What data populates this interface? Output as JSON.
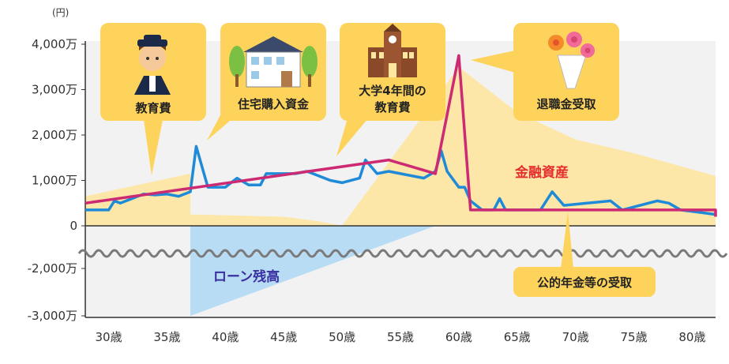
{
  "chart_data": {
    "type": "line",
    "unit": "(円)",
    "yticks": [
      {
        "value": 4000,
        "label": "4,000万"
      },
      {
        "value": 3000,
        "label": "3,000万"
      },
      {
        "value": 2000,
        "label": "2,000万"
      },
      {
        "value": 1000,
        "label": "1,000万"
      },
      {
        "value": 0,
        "label": "0"
      },
      {
        "value": -2000,
        "label": "-2,000万"
      },
      {
        "value": -3000,
        "label": "-3,000万"
      }
    ],
    "xticks": [
      {
        "value": 30,
        "label": "30歳"
      },
      {
        "value": 35,
        "label": "35歳"
      },
      {
        "value": 40,
        "label": "40歳"
      },
      {
        "value": 45,
        "label": "45歳"
      },
      {
        "value": 50,
        "label": "50歳"
      },
      {
        "value": 55,
        "label": "55歳"
      },
      {
        "value": 60,
        "label": "60歳"
      },
      {
        "value": 65,
        "label": "65歳"
      },
      {
        "value": 70,
        "label": "70歳"
      },
      {
        "value": 75,
        "label": "75歳"
      },
      {
        "value": 80,
        "label": "80歳"
      }
    ],
    "xlim": [
      28,
      82
    ],
    "series": [
      {
        "name": "金融資産",
        "color": "#cc2a73",
        "points": [
          [
            28,
            500
          ],
          [
            54,
            1450
          ],
          [
            58,
            1150
          ],
          [
            60,
            3750
          ],
          [
            61,
            350
          ],
          [
            82,
            350
          ],
          [
            82,
            200
          ]
        ]
      },
      {
        "name": "",
        "color": "#1f8bd8",
        "points": [
          [
            28,
            350
          ],
          [
            30,
            350
          ],
          [
            30.5,
            550
          ],
          [
            31,
            500
          ],
          [
            31.5,
            550
          ],
          [
            33,
            700
          ],
          [
            34,
            680
          ],
          [
            35,
            700
          ],
          [
            36,
            650
          ],
          [
            37,
            750
          ],
          [
            37.5,
            1750
          ],
          [
            38.5,
            850
          ],
          [
            39,
            850
          ],
          [
            40,
            850
          ],
          [
            41,
            1050
          ],
          [
            42,
            900
          ],
          [
            43,
            900
          ],
          [
            43.5,
            1150
          ],
          [
            45,
            1150
          ],
          [
            46,
            1150
          ],
          [
            47,
            1200
          ],
          [
            49,
            1000
          ],
          [
            50,
            950
          ],
          [
            51.5,
            1050
          ],
          [
            52,
            1450
          ],
          [
            53,
            1150
          ],
          [
            54,
            1200
          ],
          [
            55,
            1150
          ],
          [
            57,
            1050
          ],
          [
            58,
            1200
          ],
          [
            58.5,
            1650
          ],
          [
            59,
            1200
          ],
          [
            60,
            850
          ],
          [
            60.5,
            850
          ],
          [
            61,
            550
          ],
          [
            62,
            350
          ],
          [
            63,
            350
          ],
          [
            63.5,
            600
          ],
          [
            64,
            350
          ],
          [
            66,
            350
          ],
          [
            67,
            350
          ],
          [
            68,
            750
          ],
          [
            69,
            450
          ],
          [
            71,
            500
          ],
          [
            73,
            550
          ],
          [
            74,
            350
          ],
          [
            77,
            550
          ],
          [
            78,
            500
          ],
          [
            79,
            350
          ],
          [
            82,
            250
          ]
        ]
      }
    ],
    "income_area": [
      [
        28,
        650
      ],
      [
        37,
        1150
      ],
      [
        37,
        250
      ],
      [
        45,
        200
      ],
      [
        48,
        100
      ],
      [
        50,
        0
      ],
      [
        60,
        3500
      ],
      [
        65,
        2500
      ],
      [
        70,
        1900
      ],
      [
        75,
        1600
      ],
      [
        82,
        1100
      ],
      [
        82,
        0
      ],
      [
        28,
        0
      ]
    ],
    "loan_area": [
      [
        37,
        0
      ],
      [
        58,
        0
      ],
      [
        37,
        -3000
      ]
    ],
    "annotations": {
      "financial_assets": "金融資産",
      "loan_balance": "ローン残高",
      "bubbles": [
        {
          "text": "教育費"
        },
        {
          "text": "住宅購入資金"
        },
        {
          "text": "大学4年間の",
          "text2": "教育費"
        },
        {
          "text": "退職金受取"
        },
        {
          "text": "公的年金等の受取"
        }
      ]
    },
    "colors": {
      "income_area": "#fde7a8",
      "loan_area": "#b9dcf5",
      "bubble": "#fdd35b",
      "axis": "#333333",
      "wave": "#7a7a7a"
    }
  }
}
